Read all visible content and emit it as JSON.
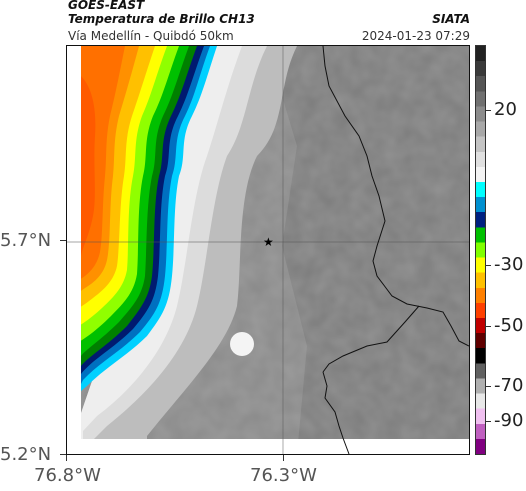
{
  "header": {
    "satellite": "GOES-EAST",
    "product": "Temperatura de Brillo CH13",
    "subtitle": "Vía Medellín - Quibdó 50km",
    "organization": "SIATA",
    "timestamp": "2024-01-23 07:29"
  },
  "axes": {
    "lat_labels": [
      "5.7°N",
      "5.2°N"
    ],
    "lon_labels": [
      "76.8°W",
      "76.3°W"
    ]
  },
  "marker": {
    "icon": "star-icon",
    "color": "#000000"
  },
  "colorbar": {
    "labels": [
      "20",
      "-30",
      "-50",
      "-70",
      "-90"
    ],
    "scale": [
      {
        "color": "#222222"
      },
      {
        "color": "#3a3a3a"
      },
      {
        "color": "#555555"
      },
      {
        "color": "#707070"
      },
      {
        "color": "#8c8c8c"
      },
      {
        "color": "#a8a8a8"
      },
      {
        "color": "#c4c4c4"
      },
      {
        "color": "#e0e0e0"
      },
      {
        "color": "#f4f4f4"
      },
      {
        "color": "#00ffff"
      },
      {
        "color": "#0090d0"
      },
      {
        "color": "#002080"
      },
      {
        "color": "#00c000"
      },
      {
        "color": "#80ff00"
      },
      {
        "color": "#ffff00"
      },
      {
        "color": "#ffc000"
      },
      {
        "color": "#ff8000"
      },
      {
        "color": "#ff4000"
      },
      {
        "color": "#c00000"
      },
      {
        "color": "#600000"
      },
      {
        "color": "#000000"
      },
      {
        "color": "#606060"
      },
      {
        "color": "#b0b0b0"
      },
      {
        "color": "#e8e8e8"
      },
      {
        "color": "#f0c0f0"
      },
      {
        "color": "#c060c0"
      },
      {
        "color": "#800080"
      }
    ]
  }
}
